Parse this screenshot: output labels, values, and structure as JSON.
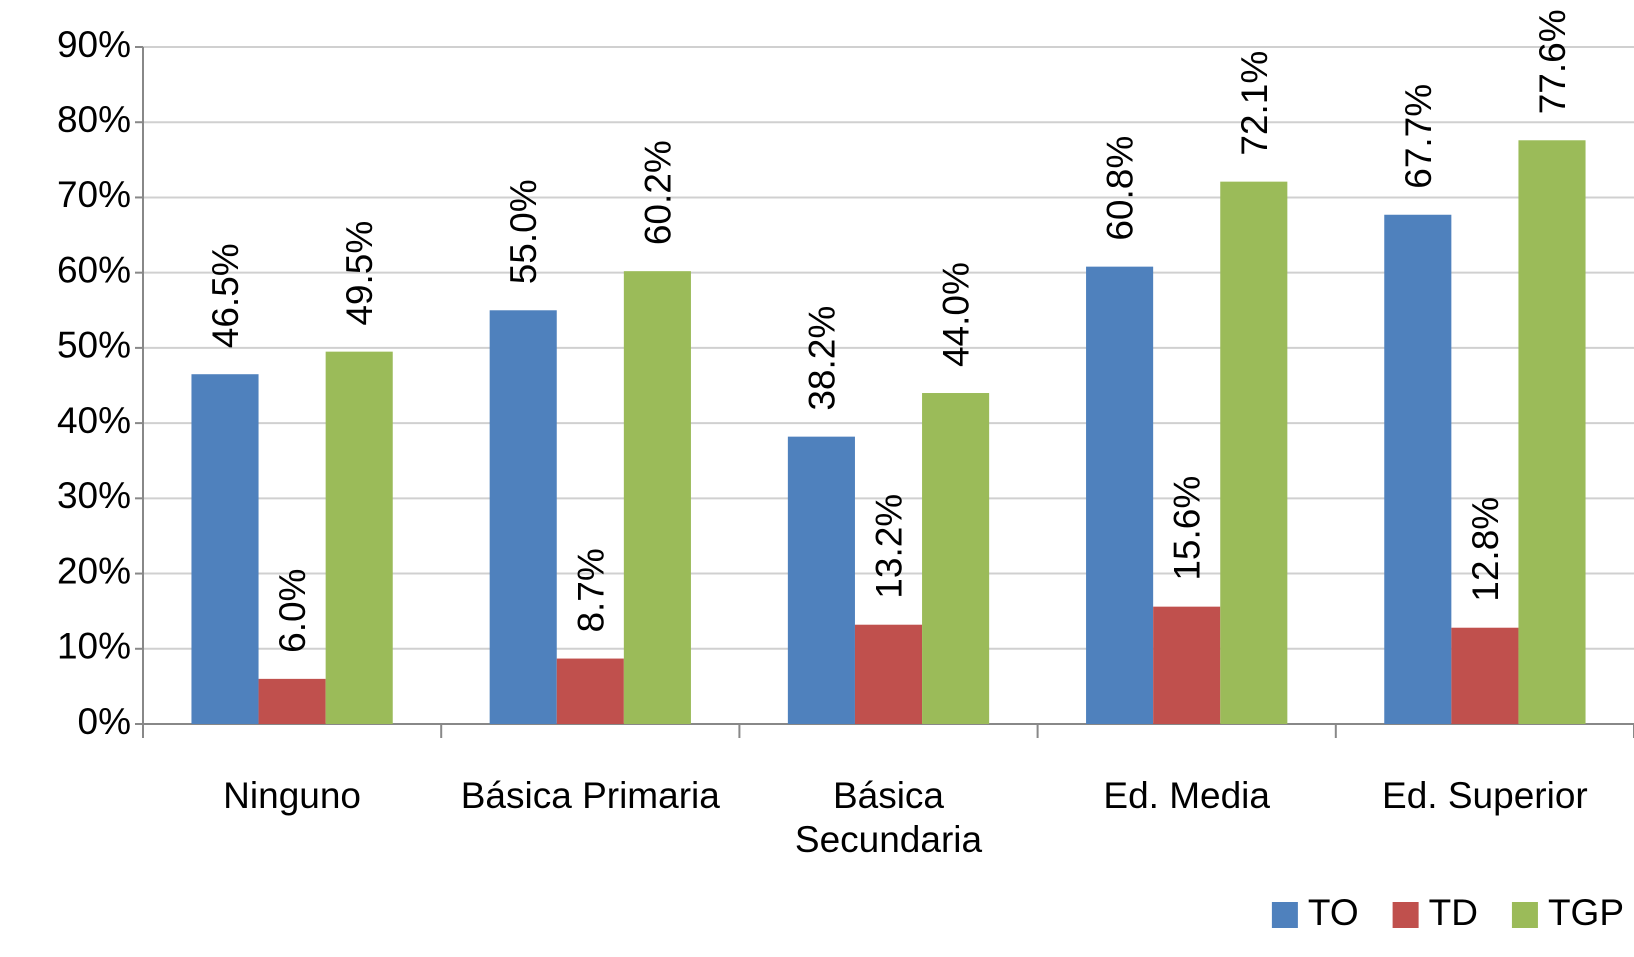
{
  "chart_data": {
    "type": "bar",
    "categories": [
      "Ninguno",
      "Básica Primaria",
      "Básica Secundaria",
      "Ed. Media",
      "Ed. Superior"
    ],
    "series": [
      {
        "name": "TO",
        "color": "#4f81bd",
        "values": [
          46.5,
          55.0,
          38.2,
          60.8,
          67.7
        ],
        "value_labels": [
          "46.5%",
          "55.0%",
          "38.2%",
          "60.8%",
          "67.7%"
        ]
      },
      {
        "name": "TD",
        "color": "#c0504d",
        "values": [
          6.0,
          8.7,
          13.2,
          15.6,
          12.8
        ],
        "value_labels": [
          "6.0%",
          "8.7%",
          "13.2%",
          "15.6%",
          "12.8%"
        ]
      },
      {
        "name": "TGP",
        "color": "#9bbb59",
        "values": [
          49.5,
          60.2,
          44.0,
          72.1,
          77.6
        ],
        "value_labels": [
          "49.5%",
          "60.2%",
          "44.0%",
          "72.1%",
          "77.6%"
        ]
      }
    ],
    "ylim": [
      0,
      90
    ],
    "yticks": [
      {
        "value": 0,
        "label": "0%"
      },
      {
        "value": 10,
        "label": "10%"
      },
      {
        "value": 20,
        "label": "20%"
      },
      {
        "value": 30,
        "label": "30%"
      },
      {
        "value": 40,
        "label": "40%"
      },
      {
        "value": 50,
        "label": "50%"
      },
      {
        "value": 60,
        "label": "60%"
      },
      {
        "value": 70,
        "label": "70%"
      },
      {
        "value": 80,
        "label": "80%"
      },
      {
        "value": 90,
        "label": "90%"
      }
    ],
    "grid": true,
    "legend": "bottom-right"
  }
}
